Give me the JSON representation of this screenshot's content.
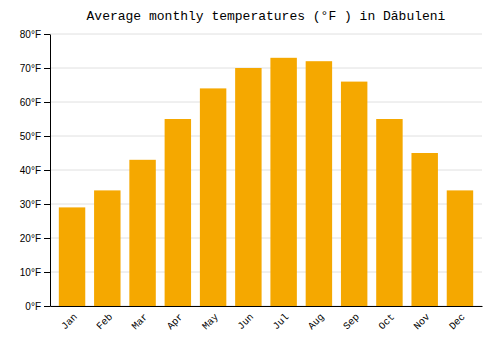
{
  "chart_data": {
    "type": "bar",
    "title": "Average monthly temperatures (°F ) in Dăbuleni",
    "categories": [
      "Jan",
      "Feb",
      "Mar",
      "Apr",
      "May",
      "Jun",
      "Jul",
      "Aug",
      "Sep",
      "Oct",
      "Nov",
      "Dec"
    ],
    "values": [
      29,
      34,
      43,
      55,
      64,
      70,
      73,
      72,
      66,
      55,
      45,
      34
    ],
    "color": "#F5A800",
    "ylim": [
      0,
      80
    ],
    "yticks": [
      {
        "value": 0,
        "label": "0°F"
      },
      {
        "value": 10,
        "label": "10°F"
      },
      {
        "value": 20,
        "label": "20°F"
      },
      {
        "value": 30,
        "label": "30°F"
      },
      {
        "value": 40,
        "label": "40°F"
      },
      {
        "value": 50,
        "label": "50°F"
      },
      {
        "value": 60,
        "label": "60°F"
      },
      {
        "value": 70,
        "label": "70°F"
      },
      {
        "value": 80,
        "label": "80°F"
      }
    ],
    "grid": true
  }
}
